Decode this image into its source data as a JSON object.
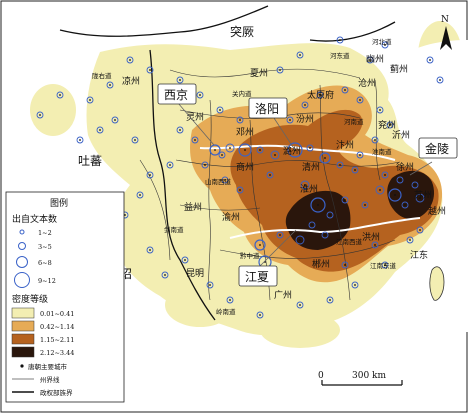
{
  "map": {
    "region_labels": {
      "tujue": "突厥",
      "tubo": "吐蕃",
      "nanzhao": "南诏"
    },
    "callouts": [
      {
        "id": "xijing",
        "text": "西京"
      },
      {
        "id": "luoyang",
        "text": "洛阳"
      },
      {
        "id": "jinling",
        "text": "金陵"
      },
      {
        "id": "jiangxia",
        "text": "江夏"
      }
    ],
    "place_labels": {
      "taiyuanfu": "太原府",
      "youzhou": "幽州",
      "jizhou": "蓟州",
      "cangzhou": "沧州",
      "yanzhou": "兖州",
      "yizhou": "沂州",
      "bianzhou": "汴州",
      "xuzhou": "徐州",
      "qingzhou": "清州",
      "huaizhou": "淮州",
      "dengzhou": "邓州",
      "luzhou": "潞州",
      "fenzhou": "汾州",
      "shangzhou": "商州",
      "lingzhou": "灵州",
      "yizhou2": "益州",
      "yuzhou": "渝州",
      "kunming": "昆明",
      "hongzhou": "洪州",
      "chenzhou": "郴州",
      "guangzhou": "广州",
      "jiangdong": "江东",
      "suzhou": "苏州",
      "yuezhou": "越州",
      "xiazhou": "夏州",
      "liangzhou": "凉州"
    },
    "circuit_labels": {
      "hedong": "河东道",
      "hebei": "河北道",
      "henan": "河南道",
      "guannei": "关内道",
      "shannan": "山南西道",
      "jiannan": "剑南道",
      "qianzhong": "黔中道",
      "jiangnanxi": "江南西道",
      "jiangnandong": "江南东道",
      "lingnan": "岭南道",
      "longyou": "陇右道",
      "huainan": "淮南道"
    },
    "north_label": "N",
    "scale_bar": {
      "zero": "0",
      "value": "300 km"
    }
  },
  "legend": {
    "title": "图例",
    "source_heading": "出自文本数",
    "source_classes": [
      "1~2",
      "3~5",
      "6~8",
      "9~12"
    ],
    "density_heading": "密度等级",
    "density_classes": [
      {
        "label": "0.01~0.41",
        "color": "#f3eeb2"
      },
      {
        "label": "0.42~1.14",
        "color": "#e6ab56"
      },
      {
        "label": "1.15~2.11",
        "color": "#b5621f"
      },
      {
        "label": "2.12~3.44",
        "color": "#2a160c"
      }
    ],
    "city_item": "唐朝主要城市",
    "state_line_item": "州界线",
    "regime_line_item": "政权部族界"
  },
  "colors": {
    "circle_stroke": "#3a62c8",
    "land_fill": "#f3eeb2",
    "sea_fill": "#ffffff"
  }
}
